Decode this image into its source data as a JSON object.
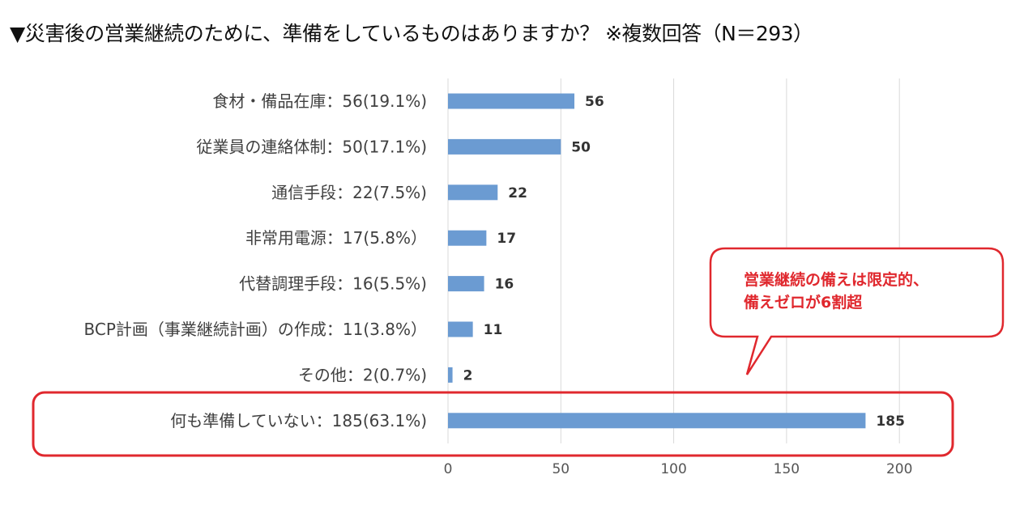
{
  "title": "▼災害後の営業継続のために、準備をしているものはありますか？ ※複数回答（N＝293）",
  "colors": {
    "bar": "#6b9bd2",
    "grid": "#d9d9d9",
    "highlight": "#e0282e"
  },
  "callout": {
    "line1": "営業継続の備えは限定的、",
    "line2": "備えゼロが6割超"
  },
  "chart_data": {
    "type": "bar",
    "orientation": "horizontal",
    "categories": [
      "食材・備品在庫：56(19.1%)",
      "従業員の連絡体制：50(17.1%)",
      "通信手段：22(7.5%)",
      "非常用電源：17(5.8%）",
      "代替調理手段：16(5.5%)",
      "BCP計画（事業継続計画）の作成：11(3.8%）",
      "その他：2(0.7%)",
      "何も準備していない：185(63.1%)"
    ],
    "values": [
      56,
      50,
      22,
      17,
      16,
      11,
      2,
      185
    ],
    "value_labels": [
      "56",
      "50",
      "22",
      "17",
      "16",
      "11",
      "2",
      "185"
    ],
    "xlim": [
      0,
      200
    ],
    "xticks": [
      "0",
      "50",
      "100",
      "150",
      "200"
    ],
    "grid": true,
    "highlighted_category": "何も準備していない：185(63.1%)"
  }
}
